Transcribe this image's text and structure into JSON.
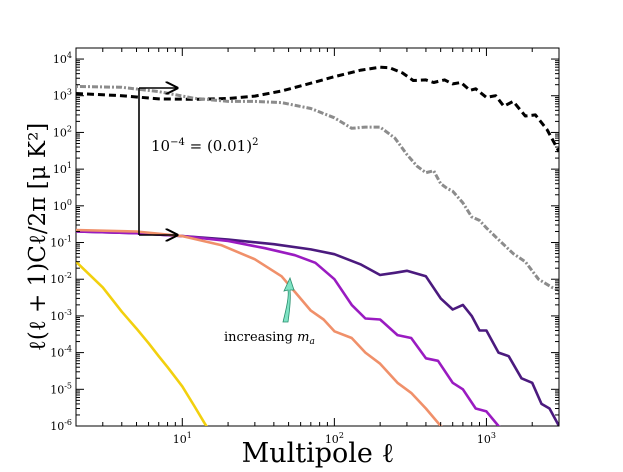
{
  "chart_data": {
    "type": "line",
    "title": "",
    "xlabel": "Multipole ℓ",
    "ylabel": "ℓ(ℓ + 1)Cℓ/2π [μ K²]",
    "xscale": "log",
    "yscale": "log",
    "xlim": [
      2,
      3000
    ],
    "ylim": [
      1e-06,
      20000
    ],
    "grid": false,
    "x_ticks": [
      {
        "value": 10,
        "base": "10",
        "exp": "1"
      },
      {
        "value": 100,
        "base": "10",
        "exp": "2"
      },
      {
        "value": 1000,
        "base": "10",
        "exp": "3"
      }
    ],
    "y_ticks": [
      {
        "value": 10000,
        "base": "10",
        "exp": "4"
      },
      {
        "value": 1000,
        "base": "10",
        "exp": "3"
      },
      {
        "value": 100,
        "base": "10",
        "exp": "2"
      },
      {
        "value": 10,
        "base": "10",
        "exp": "1"
      },
      {
        "value": 1,
        "base": "10",
        "exp": "0"
      },
      {
        "value": 0.1,
        "base": "10",
        "exp": "-1"
      },
      {
        "value": 0.01,
        "base": "10",
        "exp": "-2"
      },
      {
        "value": 0.001,
        "base": "10",
        "exp": "-3"
      },
      {
        "value": 0.0001,
        "base": "10",
        "exp": "-4"
      },
      {
        "value": 1e-05,
        "base": "10",
        "exp": "-5"
      },
      {
        "value": 1e-06,
        "base": "10",
        "exp": "-6"
      }
    ],
    "series": [
      {
        "name": "dashed-black",
        "color": "#000000",
        "style": "dashed",
        "x": [
          2,
          4,
          7,
          12,
          20,
          30,
          45,
          70,
          100,
          150,
          200,
          230,
          280,
          330,
          400,
          450,
          530,
          600,
          680,
          780,
          850,
          1000,
          1150,
          1300,
          1500,
          1800,
          2100,
          2500,
          3000
        ],
        "y": [
          1150,
          1000,
          820,
          800,
          840,
          980,
          1350,
          2200,
          3300,
          5000,
          6000,
          5800,
          4200,
          2600,
          2700,
          2300,
          2700,
          2100,
          2300,
          1400,
          1550,
          900,
          1000,
          520,
          700,
          280,
          300,
          120,
          30
        ]
      },
      {
        "name": "dotted-gray",
        "color": "#8c8c8c",
        "style": "dotted",
        "x": [
          2,
          4,
          7,
          12,
          20,
          30,
          45,
          70,
          100,
          130,
          160,
          200,
          250,
          300,
          350,
          400,
          450,
          500,
          550,
          600,
          700,
          800,
          900,
          1000,
          1200,
          1500,
          1800,
          2200,
          2700,
          3000
        ],
        "y": [
          1800,
          1700,
          1300,
          850,
          700,
          700,
          650,
          450,
          250,
          130,
          140,
          140,
          70,
          25,
          12,
          8,
          9,
          4,
          3,
          2.5,
          1.2,
          0.5,
          0.4,
          0.25,
          0.12,
          0.05,
          0.03,
          0.01,
          0.006,
          0.005
        ]
      },
      {
        "name": "dark-purple",
        "color": "#4b1a7e",
        "style": "solid",
        "x": [
          2,
          5,
          10,
          20,
          40,
          70,
          100,
          150,
          200,
          250,
          300,
          400,
          500,
          600,
          700,
          800,
          900,
          1000,
          1200,
          1400,
          1700,
          2000,
          2300,
          2600,
          3000
        ],
        "y": [
          0.2,
          0.18,
          0.15,
          0.12,
          0.09,
          0.065,
          0.048,
          0.025,
          0.013,
          0.015,
          0.017,
          0.012,
          0.003,
          0.0015,
          0.002,
          0.001,
          0.0004,
          0.0004,
          0.0001,
          8e-05,
          2e-05,
          1.5e-05,
          4e-06,
          3e-06,
          1e-06
        ]
      },
      {
        "name": "purple",
        "color": "#9a1bc1",
        "style": "solid",
        "x": [
          2,
          5,
          10,
          20,
          35,
          55,
          75,
          100,
          130,
          160,
          200,
          260,
          320,
          400,
          480,
          600,
          700,
          850,
          1000,
          1200,
          1400
        ],
        "y": [
          0.2,
          0.18,
          0.15,
          0.11,
          0.07,
          0.045,
          0.028,
          0.01,
          0.002,
          0.00085,
          0.0008,
          0.0003,
          0.00025,
          7e-05,
          6e-05,
          1.5e-05,
          1e-05,
          3e-06,
          2.5e-06,
          1e-06,
          6e-07
        ]
      },
      {
        "name": "orange",
        "color": "#f0906a",
        "style": "solid",
        "x": [
          2,
          5,
          10,
          18,
          30,
          45,
          55,
          70,
          85,
          100,
          130,
          160,
          200,
          260,
          320,
          400,
          500,
          600
        ],
        "y": [
          0.22,
          0.2,
          0.15,
          0.085,
          0.035,
          0.012,
          0.0045,
          0.0014,
          0.0008,
          0.00038,
          0.00025,
          0.0001,
          5e-05,
          1.5e-05,
          8e-06,
          3e-06,
          1e-06,
          5e-07
        ]
      },
      {
        "name": "yellow",
        "color": "#f2d00e",
        "style": "solid",
        "x": [
          2,
          3,
          4,
          5,
          6,
          7,
          8,
          10,
          12,
          14,
          16
        ],
        "y": [
          0.03,
          0.006,
          0.0013,
          0.00045,
          0.00018,
          8e-05,
          4e-05,
          1.2e-05,
          3.5e-06,
          1.2e-06,
          5e-07
        ]
      }
    ],
    "annotations": [
      {
        "text": "10^{-4} = (0.01)^2",
        "base": "10",
        "exp": "−4",
        "rest": " = (0.01)",
        "sq": "2"
      },
      {
        "text": "increasing m_a",
        "label": "increasing ",
        "var": "m",
        "sub": "a"
      }
    ]
  }
}
